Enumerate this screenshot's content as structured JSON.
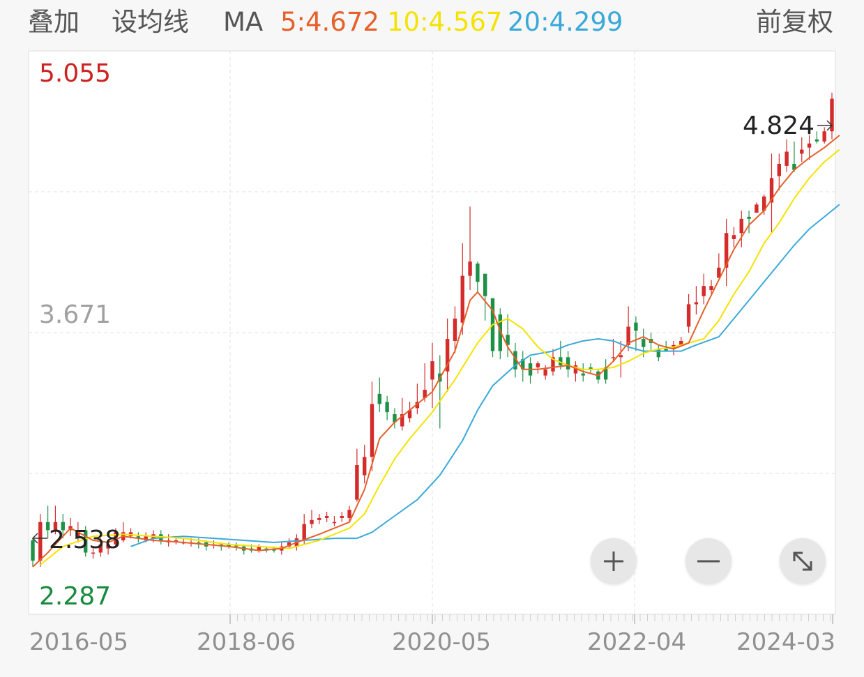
{
  "toolbar": {
    "overlay_label": "叠加",
    "set_ma_label": "设均线",
    "ma_label": "MA",
    "ma5": "5:4.672",
    "ma10": "10:4.567",
    "ma20": "20:4.299",
    "adjust_label": "前复权"
  },
  "colors": {
    "up": "#d42b2b",
    "down": "#1f9147",
    "ma5": "#e5602a",
    "ma10": "#f4e300",
    "ma20": "#3aa9d8",
    "max_label": "#c22",
    "min_label": "#178a3e",
    "mid_label": "#a0a0a0"
  },
  "chart_data": {
    "type": "candlestick",
    "y_axis_labels": {
      "max": "5.055",
      "mid": "3.671",
      "min": "2.287"
    },
    "ylim": [
      2.287,
      5.055
    ],
    "x_tick_labels": [
      "2016-05",
      "2018-06",
      "2020-05",
      "2022-04",
      "2024-03"
    ],
    "high_marker": "4.824",
    "low_marker": "2.538",
    "grid": true,
    "candles": [
      [
        2.65,
        2.55,
        2.66,
        2.52
      ],
      [
        2.55,
        2.74,
        2.78,
        2.52
      ],
      [
        2.74,
        2.7,
        2.82,
        2.66
      ],
      [
        2.7,
        2.74,
        2.82,
        2.68
      ],
      [
        2.74,
        2.7,
        2.78,
        2.66
      ],
      [
        2.7,
        2.72,
        2.76,
        2.67
      ],
      [
        2.66,
        2.7,
        2.74,
        2.64
      ],
      [
        2.7,
        2.59,
        2.72,
        2.57
      ],
      [
        2.59,
        2.59,
        2.62,
        2.56
      ],
      [
        2.59,
        2.63,
        2.66,
        2.57
      ],
      [
        2.61,
        2.63,
        2.65,
        2.58
      ],
      [
        2.63,
        2.69,
        2.71,
        2.62
      ],
      [
        2.65,
        2.69,
        2.74,
        2.64
      ],
      [
        2.67,
        2.69,
        2.71,
        2.66
      ],
      [
        2.67,
        2.66,
        2.69,
        2.64
      ],
      [
        2.65,
        2.67,
        2.69,
        2.64
      ],
      [
        2.66,
        2.68,
        2.7,
        2.64
      ],
      [
        2.68,
        2.65,
        2.7,
        2.63
      ],
      [
        2.64,
        2.65,
        2.68,
        2.62
      ],
      [
        2.64,
        2.65,
        2.67,
        2.63
      ],
      [
        2.64,
        2.64,
        2.66,
        2.63
      ],
      [
        2.64,
        2.64,
        2.66,
        2.62
      ],
      [
        2.64,
        2.63,
        2.66,
        2.61
      ],
      [
        2.64,
        2.62,
        2.65,
        2.6
      ],
      [
        2.63,
        2.63,
        2.65,
        2.61
      ],
      [
        2.63,
        2.62,
        2.64,
        2.6
      ],
      [
        2.63,
        2.62,
        2.64,
        2.61
      ],
      [
        2.63,
        2.62,
        2.64,
        2.6
      ],
      [
        2.62,
        2.6,
        2.63,
        2.58
      ],
      [
        2.61,
        2.6,
        2.63,
        2.59
      ],
      [
        2.6,
        2.62,
        2.63,
        2.59
      ],
      [
        2.61,
        2.6,
        2.62,
        2.59
      ],
      [
        2.61,
        2.6,
        2.62,
        2.59
      ],
      [
        2.6,
        2.62,
        2.64,
        2.58
      ],
      [
        2.62,
        2.64,
        2.66,
        2.61
      ],
      [
        2.62,
        2.66,
        2.68,
        2.6
      ],
      [
        2.65,
        2.73,
        2.78,
        2.63
      ],
      [
        2.73,
        2.75,
        2.8,
        2.71
      ],
      [
        2.75,
        2.76,
        2.78,
        2.73
      ],
      [
        2.76,
        2.77,
        2.79,
        2.74
      ],
      [
        2.74,
        2.74,
        2.77,
        2.72
      ],
      [
        2.76,
        2.77,
        2.79,
        2.74
      ],
      [
        2.76,
        2.8,
        2.82,
        2.74
      ],
      [
        2.85,
        3.02,
        3.1,
        2.84
      ],
      [
        2.97,
        3.06,
        3.12,
        2.93
      ],
      [
        3.06,
        3.32,
        3.43,
        2.99
      ],
      [
        3.37,
        3.32,
        3.45,
        3.28
      ],
      [
        3.33,
        3.28,
        3.36,
        3.24
      ],
      [
        3.27,
        3.23,
        3.3,
        3.2
      ],
      [
        3.21,
        3.27,
        3.35,
        3.19
      ],
      [
        3.25,
        3.29,
        3.33,
        3.23
      ],
      [
        3.3,
        3.33,
        3.42,
        3.27
      ],
      [
        3.35,
        3.39,
        3.52,
        3.33
      ],
      [
        3.44,
        3.53,
        3.62,
        3.3
      ],
      [
        3.47,
        3.43,
        3.56,
        3.2
      ],
      [
        3.48,
        3.64,
        3.74,
        3.38
      ],
      [
        3.63,
        3.74,
        3.8,
        3.57
      ],
      [
        3.72,
        3.95,
        4.11,
        3.66
      ],
      [
        3.95,
        4.02,
        4.29,
        3.88
      ],
      [
        4.01,
        3.92,
        4.02,
        3.87
      ],
      [
        3.96,
        3.85,
        3.94,
        3.73
      ],
      [
        3.84,
        3.58,
        3.82,
        3.55
      ],
      [
        3.76,
        3.58,
        3.79,
        3.54
      ],
      [
        3.66,
        3.61,
        3.76,
        3.55
      ],
      [
        3.58,
        3.49,
        3.62,
        3.45
      ],
      [
        3.54,
        3.49,
        3.58,
        3.43
      ],
      [
        3.52,
        3.46,
        3.55,
        3.42
      ],
      [
        3.5,
        3.52,
        3.53,
        3.47
      ],
      [
        3.46,
        3.49,
        3.51,
        3.44
      ],
      [
        3.48,
        3.55,
        3.59,
        3.46
      ],
      [
        3.55,
        3.51,
        3.63,
        3.49
      ],
      [
        3.55,
        3.49,
        3.58,
        3.45
      ],
      [
        3.47,
        3.51,
        3.53,
        3.43
      ],
      [
        3.47,
        3.46,
        3.52,
        3.43
      ],
      [
        3.5,
        3.49,
        3.52,
        3.47
      ],
      [
        3.48,
        3.44,
        3.49,
        3.42
      ],
      [
        3.5,
        3.44,
        3.54,
        3.42
      ],
      [
        3.55,
        3.55,
        3.64,
        3.53
      ],
      [
        3.55,
        3.56,
        3.63,
        3.45
      ],
      [
        3.61,
        3.7,
        3.8,
        3.58
      ],
      [
        3.72,
        3.68,
        3.75,
        3.58
      ],
      [
        3.64,
        3.6,
        3.69,
        3.55
      ],
      [
        3.64,
        3.62,
        3.67,
        3.58
      ],
      [
        3.59,
        3.55,
        3.61,
        3.53
      ],
      [
        3.59,
        3.58,
        3.63,
        3.58
      ],
      [
        3.59,
        3.61,
        3.63,
        3.56
      ],
      [
        3.61,
        3.63,
        3.65,
        3.61
      ],
      [
        3.7,
        3.81,
        3.86,
        3.67
      ],
      [
        3.81,
        3.82,
        3.9,
        3.76
      ],
      [
        3.85,
        3.9,
        3.96,
        3.81
      ],
      [
        3.88,
        3.9,
        3.93,
        3.86
      ],
      [
        3.94,
        3.99,
        4.06,
        3.95
      ],
      [
        3.99,
        4.16,
        4.23,
        3.9
      ],
      [
        4.13,
        4.15,
        4.19,
        4.09
      ],
      [
        4.16,
        4.23,
        4.27,
        4.09
      ],
      [
        4.24,
        4.23,
        4.27,
        4.16
      ],
      [
        4.26,
        4.3,
        4.31,
        4.27
      ],
      [
        4.27,
        4.34,
        4.35,
        4.25
      ],
      [
        4.31,
        4.43,
        4.55,
        4.16
      ],
      [
        4.44,
        4.5,
        4.55,
        4.37
      ],
      [
        4.49,
        4.56,
        4.62,
        4.46
      ],
      [
        4.5,
        4.47,
        4.61,
        4.46
      ],
      [
        4.55,
        4.57,
        4.63,
        4.51
      ],
      [
        4.58,
        4.6,
        4.64,
        4.52
      ],
      [
        4.62,
        4.61,
        4.66,
        4.6
      ],
      [
        4.61,
        4.66,
        4.68,
        4.6
      ],
      [
        4.66,
        4.82,
        4.85,
        4.62
      ]
    ],
    "ma5": [
      [
        0,
        2.52
      ],
      [
        2,
        2.59
      ],
      [
        5,
        2.71
      ],
      [
        8,
        2.65
      ],
      [
        10,
        2.64
      ],
      [
        12,
        2.67
      ],
      [
        16,
        2.65
      ],
      [
        20,
        2.64
      ],
      [
        26,
        2.62
      ],
      [
        30,
        2.6
      ],
      [
        33,
        2.61
      ],
      [
        35,
        2.64
      ],
      [
        38,
        2.68
      ],
      [
        42,
        2.74
      ],
      [
        44,
        2.9
      ],
      [
        46,
        3.15
      ],
      [
        48,
        3.23
      ],
      [
        50,
        3.29
      ],
      [
        53,
        3.38
      ],
      [
        56,
        3.58
      ],
      [
        58,
        3.83
      ],
      [
        59,
        3.87
      ],
      [
        61,
        3.78
      ],
      [
        62,
        3.68
      ],
      [
        63,
        3.6
      ],
      [
        65,
        3.49
      ],
      [
        67,
        3.49
      ],
      [
        69,
        3.5
      ],
      [
        71,
        3.51
      ],
      [
        73,
        3.48
      ],
      [
        75,
        3.46
      ],
      [
        77,
        3.53
      ],
      [
        79,
        3.62
      ],
      [
        81,
        3.65
      ],
      [
        83,
        3.61
      ],
      [
        85,
        3.59
      ],
      [
        87,
        3.62
      ],
      [
        89,
        3.78
      ],
      [
        91,
        3.93
      ],
      [
        93,
        4.08
      ],
      [
        95,
        4.2
      ],
      [
        97,
        4.27
      ],
      [
        99,
        4.38
      ],
      [
        101,
        4.47
      ],
      [
        103,
        4.53
      ],
      [
        105,
        4.58
      ],
      [
        107,
        4.64
      ]
    ],
    "ma10": [
      [
        1,
        2.53
      ],
      [
        4,
        2.62
      ],
      [
        8,
        2.67
      ],
      [
        12,
        2.68
      ],
      [
        16,
        2.67
      ],
      [
        20,
        2.66
      ],
      [
        26,
        2.63
      ],
      [
        30,
        2.62
      ],
      [
        34,
        2.61
      ],
      [
        38,
        2.65
      ],
      [
        42,
        2.71
      ],
      [
        44,
        2.78
      ],
      [
        46,
        2.92
      ],
      [
        48,
        3.05
      ],
      [
        50,
        3.15
      ],
      [
        53,
        3.28
      ],
      [
        56,
        3.44
      ],
      [
        59,
        3.62
      ],
      [
        61,
        3.71
      ],
      [
        63,
        3.74
      ],
      [
        65,
        3.69
      ],
      [
        67,
        3.6
      ],
      [
        69,
        3.54
      ],
      [
        71,
        3.51
      ],
      [
        73,
        3.49
      ],
      [
        75,
        3.49
      ],
      [
        77,
        3.5
      ],
      [
        79,
        3.53
      ],
      [
        81,
        3.57
      ],
      [
        83,
        3.59
      ],
      [
        85,
        3.6
      ],
      [
        87,
        3.62
      ],
      [
        89,
        3.64
      ],
      [
        91,
        3.73
      ],
      [
        93,
        3.86
      ],
      [
        95,
        3.97
      ],
      [
        97,
        4.11
      ],
      [
        99,
        4.21
      ],
      [
        101,
        4.33
      ],
      [
        103,
        4.43
      ],
      [
        105,
        4.51
      ],
      [
        107,
        4.57
      ]
    ],
    "ma20": [
      [
        13,
        2.62
      ],
      [
        16,
        2.66
      ],
      [
        20,
        2.67
      ],
      [
        24,
        2.66
      ],
      [
        28,
        2.65
      ],
      [
        32,
        2.64
      ],
      [
        36,
        2.65
      ],
      [
        40,
        2.66
      ],
      [
        43,
        2.66
      ],
      [
        45,
        2.69
      ],
      [
        48,
        2.77
      ],
      [
        51,
        2.85
      ],
      [
        54,
        2.97
      ],
      [
        57,
        3.14
      ],
      [
        59,
        3.29
      ],
      [
        61,
        3.41
      ],
      [
        64,
        3.51
      ],
      [
        66,
        3.56
      ],
      [
        69,
        3.58
      ],
      [
        71,
        3.61
      ],
      [
        73,
        3.63
      ],
      [
        75,
        3.64
      ],
      [
        77,
        3.63
      ],
      [
        79,
        3.6
      ],
      [
        81,
        3.58
      ],
      [
        83,
        3.58
      ],
      [
        86,
        3.58
      ],
      [
        88,
        3.61
      ],
      [
        91,
        3.65
      ],
      [
        93,
        3.74
      ],
      [
        95,
        3.83
      ],
      [
        97,
        3.92
      ],
      [
        99,
        4.01
      ],
      [
        101,
        4.1
      ],
      [
        103,
        4.18
      ],
      [
        105,
        4.24
      ],
      [
        107,
        4.3
      ]
    ]
  }
}
